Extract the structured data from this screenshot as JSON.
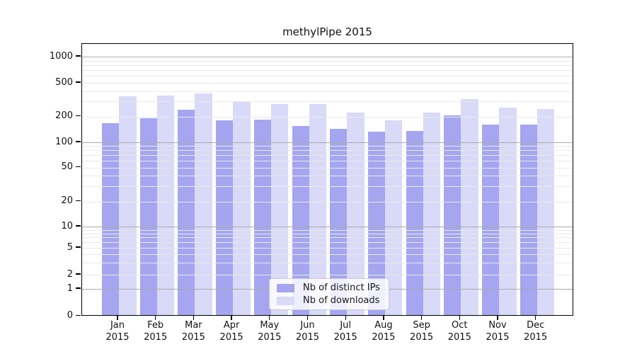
{
  "chart": {
    "title": "methylPipe 2015"
  },
  "chart_data": {
    "type": "bar",
    "title": "methylPipe 2015",
    "categories": [
      "Jan 2015",
      "Feb 2015",
      "Mar 2015",
      "Apr 2015",
      "May 2015",
      "Jun 2015",
      "Jul 2015",
      "Aug 2015",
      "Sep 2015",
      "Oct 2015",
      "Nov 2015",
      "Dec 2015"
    ],
    "months": [
      {
        "month": "Jan",
        "year": "2015"
      },
      {
        "month": "Feb",
        "year": "2015"
      },
      {
        "month": "Mar",
        "year": "2015"
      },
      {
        "month": "Apr",
        "year": "2015"
      },
      {
        "month": "May",
        "year": "2015"
      },
      {
        "month": "Jun",
        "year": "2015"
      },
      {
        "month": "Jul",
        "year": "2015"
      },
      {
        "month": "Aug",
        "year": "2015"
      },
      {
        "month": "Sep",
        "year": "2015"
      },
      {
        "month": "Oct",
        "year": "2015"
      },
      {
        "month": "Nov",
        "year": "2015"
      },
      {
        "month": "Dec",
        "year": "2015"
      }
    ],
    "series": [
      {
        "name": "Nb of distinct IPs",
        "color": "#a5a5f0",
        "values": [
          161,
          182,
          233,
          174,
          177,
          150,
          139,
          129,
          131,
          200,
          154,
          154
        ]
      },
      {
        "name": "Nb of downloads",
        "color": "#d9d9f8",
        "values": [
          335,
          342,
          358,
          284,
          268,
          268,
          212,
          172,
          212,
          310,
          244,
          236
        ]
      }
    ],
    "y_axis": {
      "scale": "log-like",
      "tick_values": [
        1000,
        500,
        200,
        100,
        50,
        20,
        10,
        5,
        2,
        1,
        0
      ],
      "tick_labels": [
        "1000",
        "500",
        "200",
        "100",
        "50",
        "20",
        "10",
        "5",
        "2",
        "1",
        "0"
      ],
      "major_grid_values": [
        1,
        10,
        100,
        1000
      ],
      "grid": "both"
    },
    "legend": {
      "position": "bottom-center",
      "entries": [
        "Nb of distinct IPs",
        "Nb of downloads"
      ]
    },
    "colors": {
      "bar_dark": "#a5a5f0",
      "bar_light": "#d9d9f8",
      "grid_major": "#ababab",
      "grid_minor": "#e9e9e9",
      "spine": "#000000"
    }
  }
}
